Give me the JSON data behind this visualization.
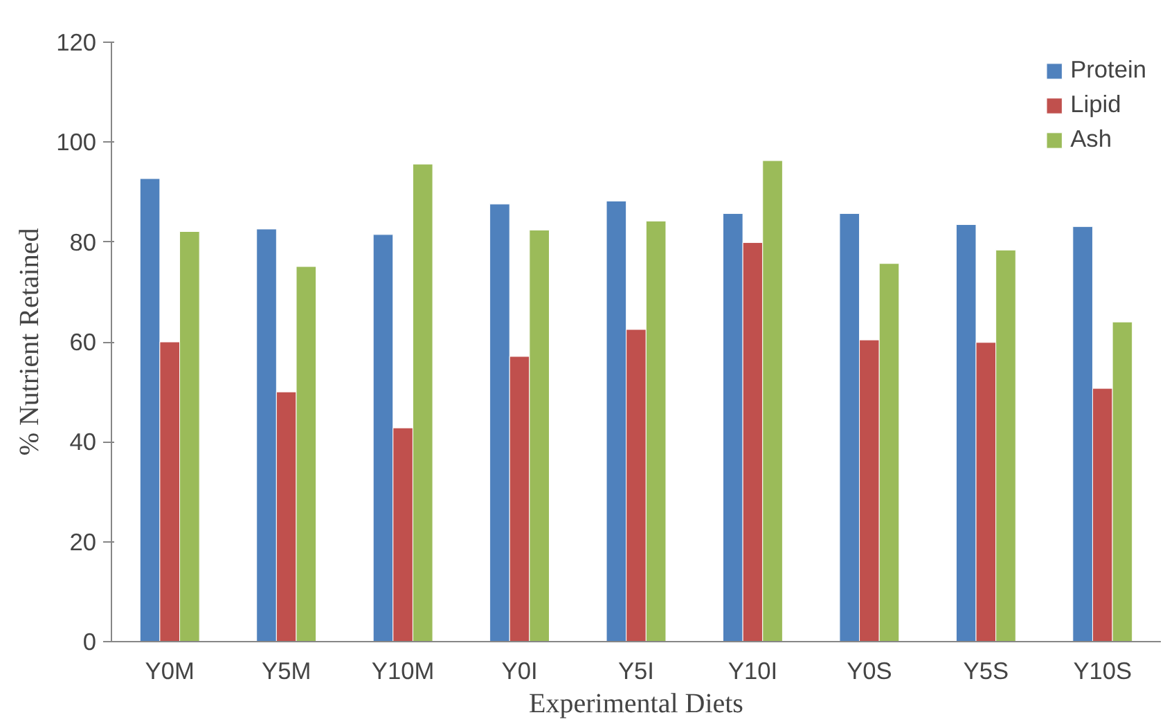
{
  "chart_data": {
    "type": "bar",
    "xlabel": "Experimental Diets",
    "ylabel": "% Nutrient Retained",
    "categories": [
      "Y0M",
      "Y5M",
      "Y10M",
      "Y0I",
      "Y5I",
      "Y10I",
      "Y0S",
      "Y5S",
      "Y10S"
    ],
    "series": [
      {
        "name": "Protein",
        "color": "#4f81bd",
        "values": [
          92.7,
          82.6,
          81.5,
          87.6,
          88.2,
          85.7,
          85.7,
          83.5,
          83.1
        ]
      },
      {
        "name": "Lipid",
        "color": "#c0504d",
        "values": [
          60.0,
          50.0,
          42.8,
          57.1,
          62.5,
          79.9,
          60.4,
          59.9,
          50.7
        ]
      },
      {
        "name": "Ash",
        "color": "#9bbb59",
        "values": [
          82.1,
          75.1,
          95.6,
          82.4,
          84.2,
          96.3,
          75.7,
          78.4,
          64.0
        ]
      }
    ],
    "ylim": [
      0,
      120
    ],
    "yticks": [
      0,
      20,
      40,
      60,
      80,
      100,
      120
    ],
    "grid": false,
    "legend": "top right"
  }
}
